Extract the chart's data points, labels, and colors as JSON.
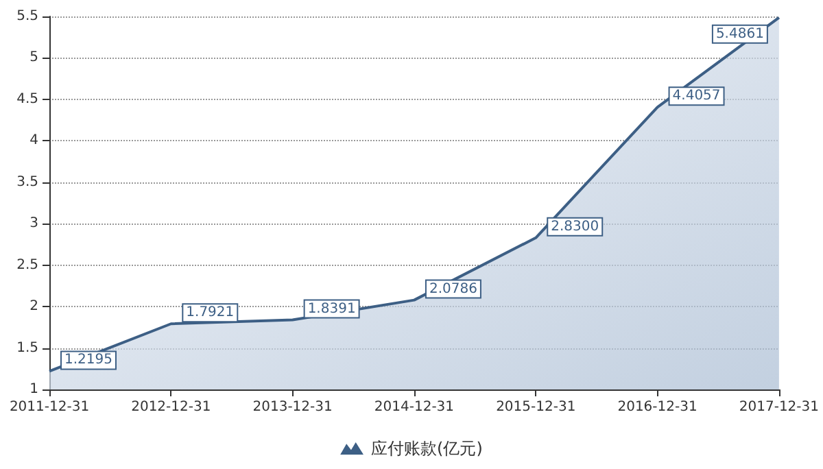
{
  "chart_data": {
    "type": "area",
    "categories": [
      "2011-12-31",
      "2012-12-31",
      "2013-12-31",
      "2014-12-31",
      "2015-12-31",
      "2016-12-31",
      "2017-12-31"
    ],
    "series": [
      {
        "name": "应付账款(亿元)",
        "color": "#3d5f85",
        "values": [
          1.2195,
          1.7921,
          1.8391,
          2.0786,
          2.83,
          4.4057,
          5.4861
        ]
      }
    ],
    "value_labels": [
      "1.2195",
      "1.7921",
      "1.8391",
      "2.0786",
      "2.8300",
      "4.4057",
      "5.4861"
    ],
    "ylim": [
      1,
      5.5
    ],
    "yticks": [
      1,
      1.5,
      2,
      2.5,
      3,
      3.5,
      4,
      4.5,
      5,
      5.5
    ],
    "grid": "y",
    "legend": "bottom",
    "marker": "none"
  }
}
